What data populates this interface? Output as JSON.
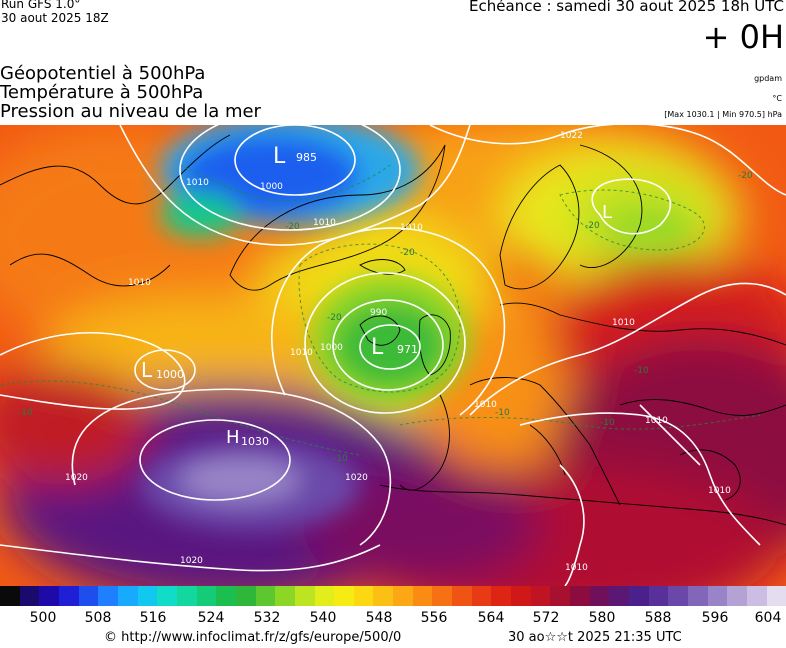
{
  "header": {
    "run": "Run GFS 1.0°",
    "run_date": "30 aout 2025 18Z",
    "echeance": "Echéance : samedi 30 aout 2025 18h UTC",
    "lead": "+ 0H"
  },
  "fields": [
    "Géopotentiel à 500hPa",
    "Température à 500hPa",
    "Pression au niveau de la mer"
  ],
  "units": {
    "geopotential": "gpdam",
    "temperature": "°C",
    "pressure_range": "[Max 1030.1 | Min 970.5] hPa"
  },
  "map": {
    "centers": [
      {
        "type": "L",
        "value": "985"
      },
      {
        "type": "L",
        "value": "971"
      },
      {
        "type": "L",
        "value": "1000"
      },
      {
        "type": "H",
        "value": "1030"
      },
      {
        "type": "L",
        "value": ""
      }
    ],
    "isobar_labels": [
      "1010",
      "1000",
      "1010",
      "1010",
      "990",
      "1000",
      "1010",
      "1010",
      "1020",
      "1020",
      "1020",
      "1010",
      "1010",
      "1010",
      "1010",
      "1022",
      "1010"
    ],
    "temp_labels": [
      "-20",
      "-20",
      "-20",
      "-20",
      "-20",
      "-10",
      "-10",
      "-10",
      "-10",
      "-10"
    ]
  },
  "colorbar": {
    "ticks": [
      "500",
      "508",
      "516",
      "524",
      "532",
      "540",
      "548",
      "556",
      "564",
      "572",
      "580",
      "588",
      "596",
      "604"
    ],
    "colors": [
      "#0a0a0a",
      "#1a0a6e",
      "#1e0aa8",
      "#1f1fd6",
      "#1e4fee",
      "#1e7fff",
      "#18aaff",
      "#12c8ee",
      "#10dcc8",
      "#12d8a0",
      "#14cc78",
      "#1cbe50",
      "#2fb73a",
      "#5cc72e",
      "#8cd626",
      "#bce420",
      "#e2ee1c",
      "#f6ec14",
      "#fcd812",
      "#fcc014",
      "#fca814",
      "#fa8c14",
      "#f67014",
      "#f05414",
      "#e83a14",
      "#de2414",
      "#d01818",
      "#c01424",
      "#a81030",
      "#8c0c40",
      "#70105a",
      "#5a1874",
      "#4c208a",
      "#58309a",
      "#6a48aa",
      "#8266ba",
      "#9a84c8",
      "#b4a2d4",
      "#ccbee2",
      "#e4dcef"
    ]
  },
  "footer": {
    "url": "© http://www.infoclimat.fr/z/gfs/europe/500/0",
    "time": "30 ao☆☆t 2025 21:35 UTC"
  }
}
